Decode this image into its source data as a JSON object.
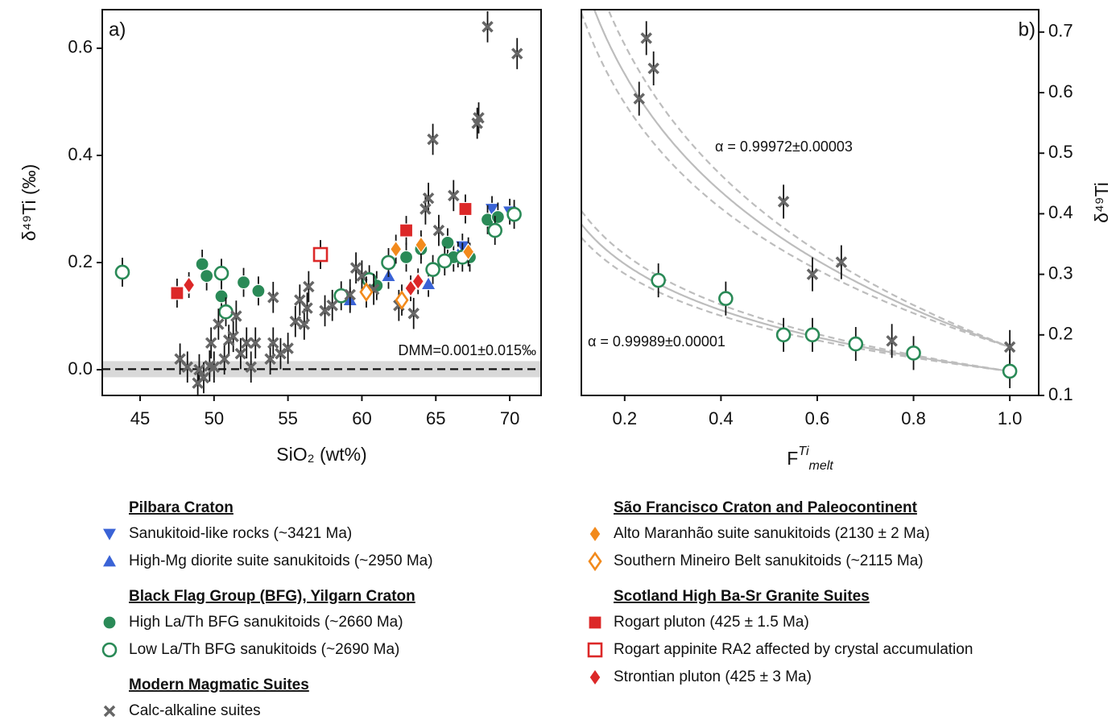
{
  "chart_data": [
    {
      "type": "scatter",
      "panel_label": "a)",
      "xlabel": "SiO₂ (wt%)",
      "ylabel": "δ⁴⁹Ti (‰)",
      "xlim": [
        42.44,
        72.12
      ],
      "ylim": [
        -0.048,
        0.672
      ],
      "xticks": [
        45,
        50,
        55,
        60,
        65,
        70
      ],
      "yticks": [
        {
          "value": 0,
          "label": "0.0"
        },
        0.2,
        0.4,
        0.6
      ],
      "reference": {
        "label": "DMM=0.001±0.015‰",
        "value": 0.001,
        "error": 0.015
      },
      "series": [
        {
          "group": "Pilbara Craton",
          "name": "Sanukitoid-like rocks (~3421 Ma)",
          "color": "#3a63d6",
          "marker": "v",
          "filled": true,
          "yerr": 0.015,
          "x": [
            66.8,
            68.8,
            70.0
          ],
          "values": [
            0.23,
            0.3,
            0.295
          ]
        },
        {
          "name": "High-Mg diorite suite sanukitoids (~2950 Ma)",
          "color": "#3a63d6",
          "marker": "^",
          "filled": true,
          "yerr": 0.015,
          "x": [
            59.2,
            61.8,
            64.5,
            66.5
          ],
          "values": [
            0.13,
            0.175,
            0.16,
            0.215
          ]
        },
        {
          "group": "Black Flag Group (BFG), Yilgarn Craton",
          "name": "High La/Th BFG sanukitoids (~2660 Ma)",
          "color": "#2a8a57",
          "marker": "o",
          "filled": true,
          "yerr": 0.018,
          "x": [
            49.2,
            49.5,
            50.5,
            52.0,
            53.0,
            61.0,
            63.0,
            64.0,
            65.8,
            66.2,
            67.3,
            68.5,
            69.2
          ],
          "values": [
            0.197,
            0.175,
            0.137,
            0.163,
            0.147,
            0.157,
            0.21,
            0.225,
            0.237,
            0.21,
            0.21,
            0.28,
            0.285
          ]
        },
        {
          "name": "Low La/Th BFG sanukitoids (~2690 Ma)",
          "color": "#2a8a57",
          "marker": "o",
          "filled": false,
          "yerr": 0.018,
          "x": [
            43.8,
            50.5,
            50.8,
            58.6,
            60.5,
            61.8,
            64.8,
            65.6,
            66.8,
            69.0,
            70.3
          ],
          "values": [
            0.182,
            0.18,
            0.108,
            0.138,
            0.168,
            0.2,
            0.187,
            0.203,
            0.21,
            0.26,
            0.29
          ]
        },
        {
          "group": "Modern Magmatic Suites",
          "name": "Calc-alkaline suites",
          "color": "#666666",
          "marker": "x",
          "filled": true,
          "yerr": 0.02,
          "x": [
            47.7,
            48.2,
            49.0,
            48.9,
            49.3,
            49.7,
            50.0,
            49.8,
            50.3,
            50.7,
            51.0,
            51.3,
            51.5,
            51.8,
            52.2,
            52.5,
            52.8,
            53.8,
            54.0,
            54.0,
            54.5,
            55.0,
            55.5,
            55.8,
            56.1,
            56.3,
            56.4,
            57.5,
            58.0,
            59.2,
            59.6,
            60.0,
            60.8,
            62.5,
            63.5,
            64.3,
            64.5,
            64.8,
            65.2,
            66.2,
            67.8,
            67.9,
            68.5,
            70.5
          ],
          "values": [
            0.02,
            0.005,
            0.0,
            -0.025,
            -0.015,
            0.007,
            0.005,
            0.05,
            0.085,
            0.02,
            0.055,
            0.062,
            0.1,
            0.03,
            0.05,
            0.005,
            0.05,
            0.02,
            0.05,
            0.135,
            0.03,
            0.04,
            0.09,
            0.13,
            0.085,
            0.115,
            0.155,
            0.11,
            0.12,
            0.14,
            0.19,
            0.175,
            0.15,
            0.12,
            0.105,
            0.3,
            0.32,
            0.43,
            0.26,
            0.325,
            0.46,
            0.47,
            0.64,
            0.59
          ]
        },
        {
          "group": "São Francisco Craton and Paleocontinent",
          "name": "Alto Maranhão suite sanukitoids (2130 ± 2 Ma)",
          "color": "#f28a1c",
          "marker": "D",
          "filled": true,
          "yerr": 0.018,
          "x": [
            62.3,
            64.0,
            67.2
          ],
          "values": [
            0.225,
            0.233,
            0.22
          ]
        },
        {
          "name": "Southern Mineiro Belt sanukitoids (~2115 Ma)",
          "color": "#f28a1c",
          "marker": "D",
          "filled": false,
          "yerr": 0.02,
          "x": [
            60.3,
            62.7
          ],
          "values": [
            0.145,
            0.13
          ]
        },
        {
          "group": "Scotland High Ba-Sr Granite Suites",
          "name": "Rogart pluton (425 ± 1.5 Ma)",
          "color": "#dc2828",
          "marker": "s",
          "filled": true,
          "yerr": 0.018,
          "x": [
            47.5,
            63.0,
            67.0
          ],
          "values": [
            0.143,
            0.26,
            0.3
          ]
        },
        {
          "name": "Rogart appinite RA2 affected by crystal accumulation",
          "color": "#dc2828",
          "marker": "s",
          "filled": false,
          "yerr": 0.018,
          "x": [
            57.2
          ],
          "values": [
            0.215
          ]
        },
        {
          "name": "Strontian pluton (425 ± 3 Ma)",
          "color": "#dc2828",
          "marker": "D",
          "filled": true,
          "yerr": 0.015,
          "x": [
            48.3,
            63.3,
            63.8
          ],
          "values": [
            0.158,
            0.152,
            0.165
          ]
        }
      ]
    },
    {
      "type": "scatter",
      "panel_label": "b)",
      "xlabel": {
        "text": "F",
        "sup": "Ti",
        "sub": "melt"
      },
      "ylabel": "δ⁴⁹Ti",
      "xlim": [
        0.11,
        1.06
      ],
      "ylim": [
        0.1,
        0.737
      ],
      "xticks": [
        0.2,
        0.4,
        0.6,
        0.8,
        {
          "value": 1,
          "label": "1.0"
        }
      ],
      "yticks": [
        0.1,
        0.2,
        0.3,
        0.4,
        0.5,
        0.6,
        0.7
      ],
      "fits": [
        {
          "label": "α = 0.99972±0.00003",
          "alpha": 0.99972,
          "alpha_err": 3e-05,
          "start": 0.18
        },
        {
          "label": "α = 0.99989±0.00001",
          "alpha": 0.99989,
          "alpha_err": 1e-05,
          "start": 0.14
        }
      ],
      "series": [
        {
          "color": "#666666",
          "marker": "x",
          "filled": true,
          "yerr": 0.02,
          "x": [
            0.23,
            0.245,
            0.26,
            0.53,
            0.59,
            0.65,
            0.755,
            1.0
          ],
          "values": [
            0.59,
            0.69,
            0.64,
            0.42,
            0.3,
            0.32,
            0.19,
            0.18
          ]
        },
        {
          "color": "#2a8a57",
          "marker": "o",
          "filled": false,
          "yerr": 0.02,
          "x": [
            0.27,
            0.41,
            0.53,
            0.59,
            0.68,
            0.8,
            1.0
          ],
          "values": [
            0.29,
            0.26,
            0.2,
            0.2,
            0.185,
            0.17,
            0.14
          ]
        }
      ]
    }
  ]
}
